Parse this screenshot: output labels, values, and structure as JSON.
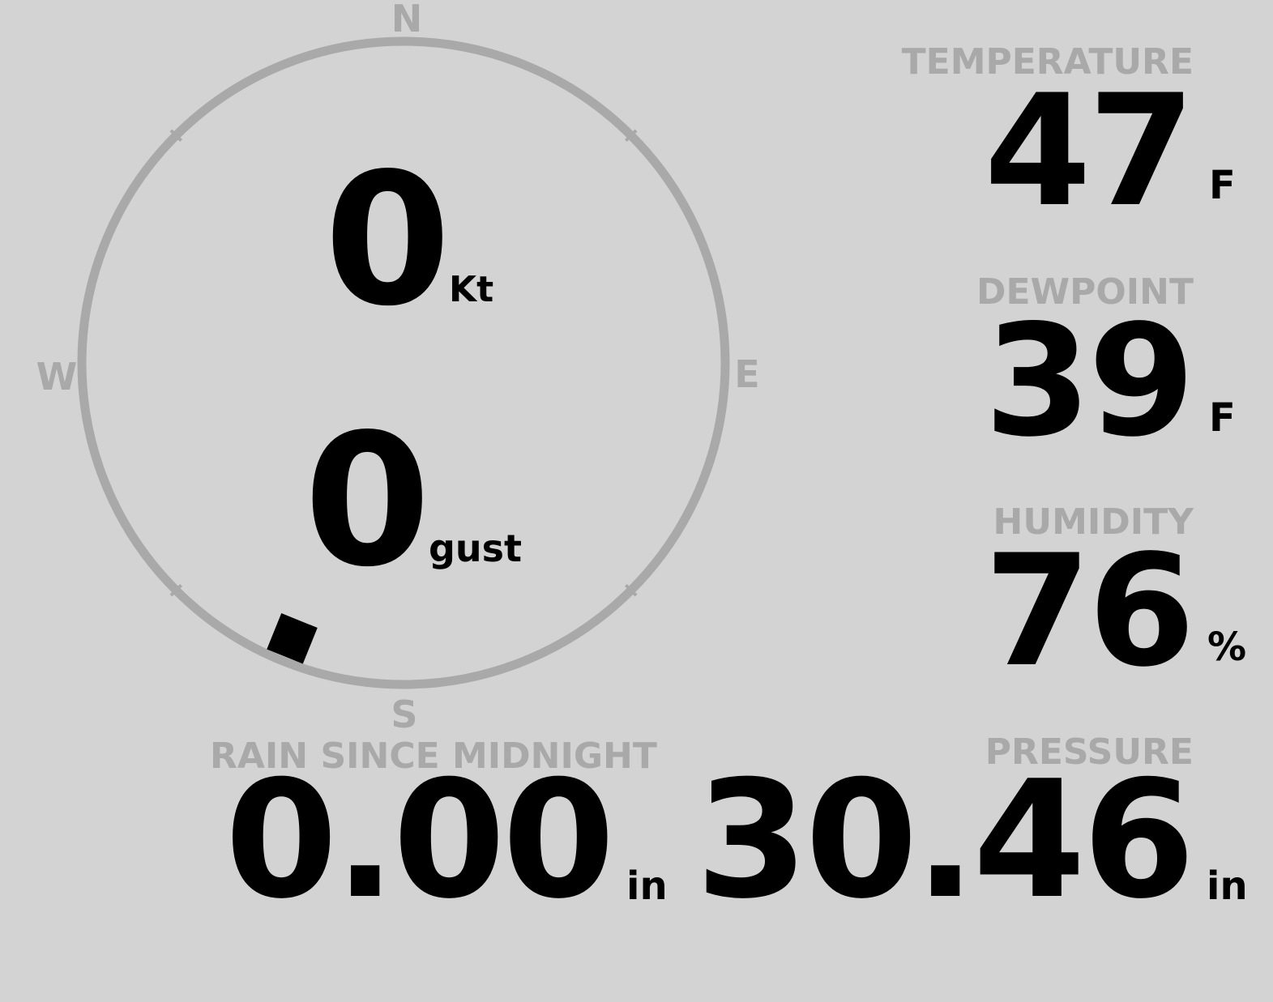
{
  "wind": {
    "speed": "0",
    "speed_unit": "Kt",
    "gust": "0",
    "gust_unit": "gust",
    "direction_deg": 202,
    "compass": {
      "n": "N",
      "s": "S",
      "e": "E",
      "w": "W"
    }
  },
  "temperature": {
    "label": "TEMPERATURE",
    "value": "47",
    "unit": "F"
  },
  "dewpoint": {
    "label": "DEWPOINT",
    "value": "39",
    "unit": "F"
  },
  "humidity": {
    "label": "HUMIDITY",
    "value": "76",
    "unit": "%"
  },
  "rain": {
    "label": "RAIN SINCE MIDNIGHT",
    "value": "0.00",
    "unit": "in"
  },
  "pressure": {
    "label": "PRESSURE",
    "value": "30.46",
    "unit": "in"
  },
  "colors": {
    "background": "#d3d3d3",
    "dim": "#a9a9a9",
    "text": "#000000"
  }
}
